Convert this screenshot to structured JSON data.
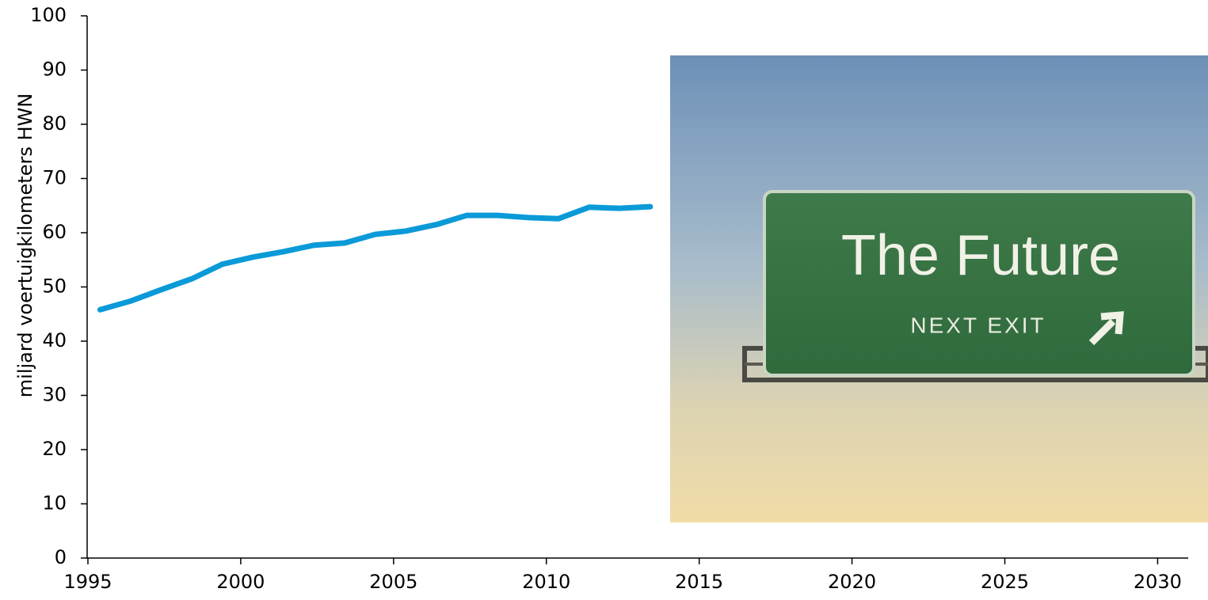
{
  "chart_data": {
    "type": "line",
    "y_label": "miljard voertuigkilometers HWN",
    "x": [
      1995.4,
      1996.4,
      1997.4,
      1998.4,
      1999.4,
      2000.4,
      2001.4,
      2002.4,
      2003.4,
      2004.4,
      2005.4,
      2006.4,
      2007.4,
      2008.4,
      2009.4,
      2010.4,
      2011.4,
      2012.4,
      2013.4
    ],
    "series": [
      {
        "color": "#0a9ad8",
        "values": [
          45.8,
          47.4,
          49.5,
          51.5,
          54.2,
          55.5,
          56.5,
          57.7,
          58.1,
          59.7,
          60.3,
          61.5,
          63.2,
          63.2,
          62.8,
          62.6,
          64.7,
          64.5,
          64.8
        ]
      }
    ],
    "xlim": [
      1995,
      2031
    ],
    "xticks": [
      1995,
      2000,
      2005,
      2010,
      2015,
      2020,
      2025,
      2030
    ],
    "ylim": [
      0,
      100
    ],
    "yticks": [
      0,
      10,
      20,
      30,
      40,
      50,
      60,
      70,
      80,
      90,
      100
    ],
    "grid": false,
    "image_text": {
      "headline": "The Future",
      "sign": "NEXT EXIT"
    }
  }
}
